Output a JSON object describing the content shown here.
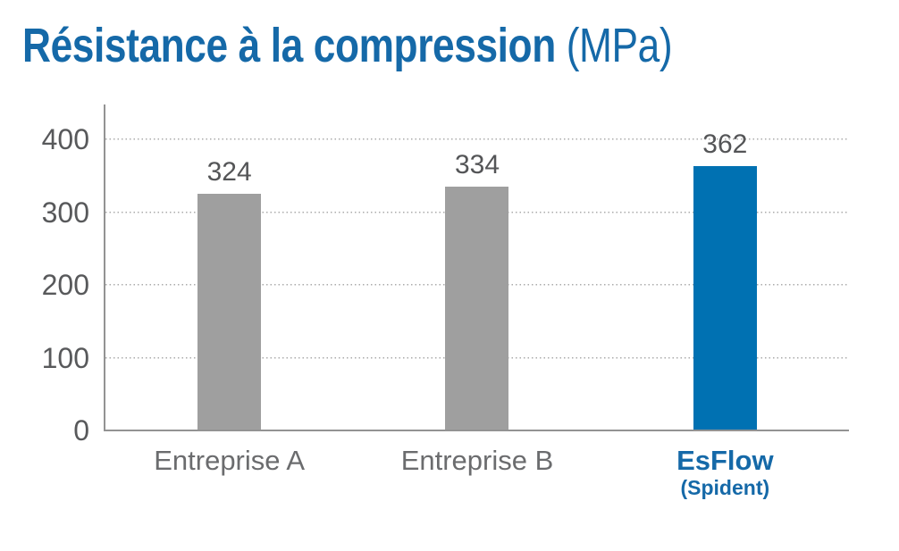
{
  "title": {
    "main": "Résistance à la compression",
    "unit": " (MPa)"
  },
  "colors": {
    "title_blue": "#1569a8",
    "bar_blue": "#0071b2",
    "bar_gray": "#9f9f9f",
    "axis_gray": "#939393",
    "gridline_gray": "#ababab",
    "tick_text_gray": "#58595b",
    "category_text_gray": "#6b6c6e"
  },
  "chart_data": {
    "type": "bar",
    "title": "Résistance à la compression (MPa)",
    "categories": [
      "Entreprise A",
      "Entreprise B",
      "EsFlow (Spident)"
    ],
    "category_lines": [
      {
        "line1": "Entreprise A",
        "line2": ""
      },
      {
        "line1": "Entreprise B",
        "line2": ""
      },
      {
        "line1": "EsFlow",
        "line2": "(Spident)"
      }
    ],
    "values": [
      324,
      334,
      362
    ],
    "value_labels": [
      "324",
      "334",
      "362"
    ],
    "bar_colors": [
      "#9f9f9f",
      "#9f9f9f",
      "#0071b2"
    ],
    "xlabel": "",
    "ylabel": "",
    "ylim": [
      0,
      400
    ],
    "yticks": [
      "400",
      "300",
      "200",
      "100",
      "0"
    ],
    "grid": "horizontal-dotted",
    "legend": "none"
  }
}
